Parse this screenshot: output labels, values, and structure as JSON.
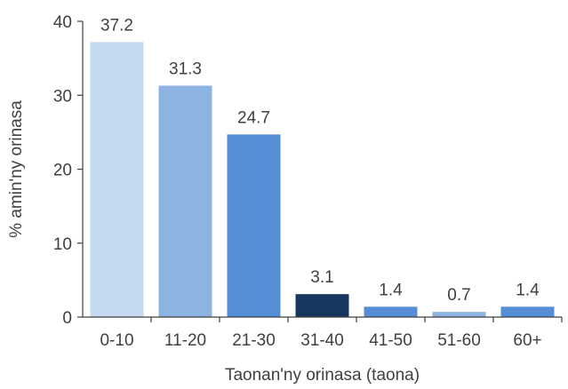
{
  "chart_data": {
    "type": "bar",
    "categories": [
      "0-10",
      "11-20",
      "21-30",
      "31-40",
      "41-50",
      "51-60",
      "60+"
    ],
    "values": [
      37.2,
      31.3,
      24.7,
      3.1,
      1.4,
      0.7,
      1.4
    ],
    "value_labels": [
      "37.2",
      "31.3",
      "24.7",
      "3.1",
      "1.4",
      "0.7",
      "1.4"
    ],
    "colors": [
      "#c5d9f1",
      "#8db3e2",
      "#558ed5",
      "#17375e",
      "#558ed5",
      "#8db3e2",
      "#558ed5"
    ],
    "title": "",
    "xlabel": "Taonan'ny orinasa (taona)",
    "ylabel": "% amin'ny orinasa",
    "ylim": [
      0,
      40
    ],
    "yticks": [
      0,
      10,
      20,
      30,
      40
    ],
    "grid": false,
    "legend": "none"
  }
}
